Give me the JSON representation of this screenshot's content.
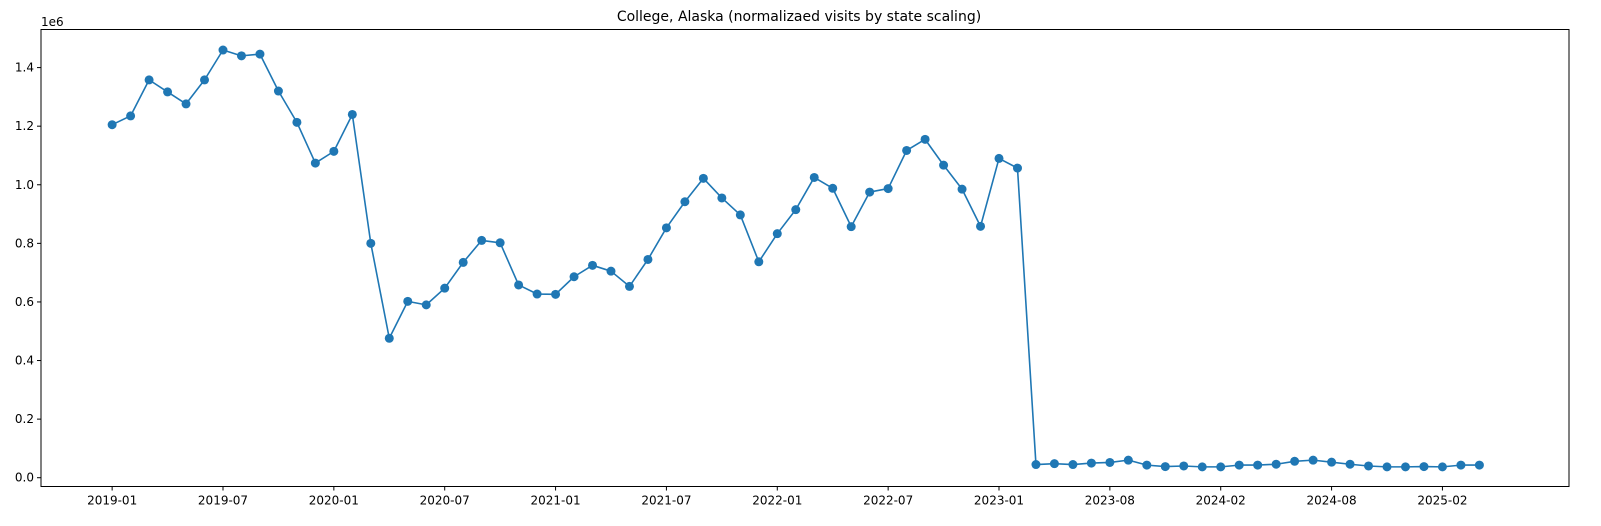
{
  "chart_data": {
    "type": "line",
    "title": "College, Alaska (normalizaed visits by state scaling)",
    "xlabel": "",
    "ylabel": "",
    "y_offset_label": "1e6",
    "ylim": [
      -0.03,
      1.53
    ],
    "y_ticks": [
      0.0,
      0.2,
      0.4,
      0.6,
      0.8,
      1.0,
      1.2,
      1.4
    ],
    "y_tick_labels": [
      "0.0",
      "0.2",
      "0.4",
      "0.6",
      "0.8",
      "1.0",
      "1.2",
      "1.4"
    ],
    "x_range_months": [
      -3.85,
      78.85
    ],
    "x_ticks": [
      0,
      6,
      12,
      18,
      24,
      30,
      36,
      42,
      48,
      54,
      60,
      66,
      72
    ],
    "x_tick_labels": [
      "2019-01",
      "2019-07",
      "2020-01",
      "2020-07",
      "2021-01",
      "2021-07",
      "2022-01",
      "2022-07",
      "2023-01",
      "2023-08",
      "2024-02",
      "2024-08",
      "2025-02"
    ],
    "grid": false,
    "color": "#1f77b4",
    "series": [
      {
        "name": "normalized visits",
        "x_months": [
          0,
          1,
          2,
          3,
          4,
          5,
          6,
          7,
          8,
          9,
          10,
          11,
          12,
          13,
          14,
          15,
          16,
          17,
          18,
          19,
          20,
          21,
          22,
          23,
          24,
          25,
          26,
          27,
          28,
          29,
          30,
          31,
          32,
          33,
          34,
          35,
          36,
          37,
          38,
          39,
          40,
          41,
          42,
          43,
          44,
          45,
          46,
          47,
          48,
          49,
          50,
          51,
          52,
          53,
          54,
          55,
          56,
          57,
          58,
          59,
          60,
          61,
          62,
          63,
          64,
          65,
          66,
          67,
          68,
          69,
          70,
          71,
          72,
          73,
          74
        ],
        "values": [
          1.205,
          1.235,
          1.358,
          1.317,
          1.276,
          1.358,
          1.46,
          1.44,
          1.446,
          1.32,
          1.213,
          1.074,
          1.114,
          1.24,
          0.8,
          0.476,
          0.602,
          0.59,
          0.647,
          0.735,
          0.81,
          0.802,
          0.658,
          0.627,
          0.626,
          0.686,
          0.725,
          0.705,
          0.653,
          0.745,
          0.853,
          0.942,
          1.022,
          0.955,
          0.897,
          0.737,
          0.833,
          0.915,
          1.025,
          0.988,
          0.857,
          0.975,
          0.987,
          1.117,
          1.155,
          1.067,
          0.985,
          0.858,
          1.09,
          1.057,
          0.045,
          0.048,
          0.045,
          0.05,
          0.052,
          0.06,
          0.043,
          0.038,
          0.04,
          0.037,
          0.037,
          0.043,
          0.043,
          0.046,
          0.056,
          0.06,
          0.053,
          0.046,
          0.04,
          0.037,
          0.037,
          0.038,
          0.037,
          0.043,
          0.043
        ]
      }
    ]
  }
}
